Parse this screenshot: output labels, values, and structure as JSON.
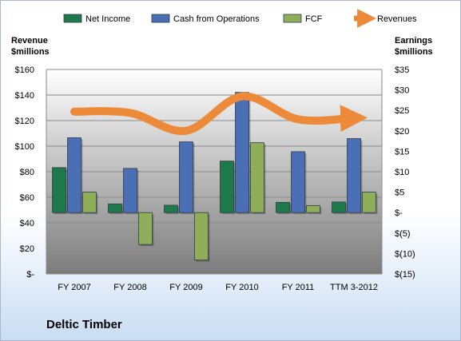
{
  "company": "Deltic Timber",
  "chart_data": {
    "type": "bar",
    "categories": [
      "FY 2007",
      "FY 2008",
      "FY 2009",
      "FY 2010",
      "FY 2011",
      "TTM 3-2012"
    ],
    "left_axis": {
      "title_line1": "Revenue",
      "title_line2": "$millions",
      "range": [
        0,
        160
      ],
      "ticks": [
        "$-",
        "$20",
        "$40",
        "$60",
        "$80",
        "$100",
        "$120",
        "$140",
        "$160"
      ]
    },
    "right_axis": {
      "title_line1": "Earnings",
      "title_line2": "$millions",
      "range": [
        -15,
        35
      ],
      "ticks": [
        "$(15)",
        "$(10)",
        "$(5)",
        "$-",
        "$5",
        "$10",
        "$15",
        "$20",
        "$25",
        "$30",
        "$35"
      ]
    },
    "series": [
      {
        "name": "Net Income",
        "axis": "right",
        "kind": "bar",
        "color": "#1e7a4a",
        "values": [
          11,
          2.1,
          1.8,
          12.6,
          2.5,
          2.6
        ]
      },
      {
        "name": "Cash from Operations",
        "axis": "right",
        "kind": "bar",
        "color": "#4a6fb5",
        "values": [
          18.3,
          10.8,
          17.3,
          29.4,
          14.9,
          18.1
        ]
      },
      {
        "name": "FCF",
        "axis": "right",
        "kind": "bar",
        "color": "#8fae5a",
        "values": [
          5,
          -7.8,
          -11.6,
          17.1,
          1.7,
          5
        ]
      },
      {
        "name": "Revenues",
        "axis": "left",
        "kind": "line",
        "color": "#ec8a3a",
        "values": [
          127,
          126,
          112,
          139,
          121,
          122
        ]
      }
    ],
    "legend": "top",
    "grid": true
  }
}
